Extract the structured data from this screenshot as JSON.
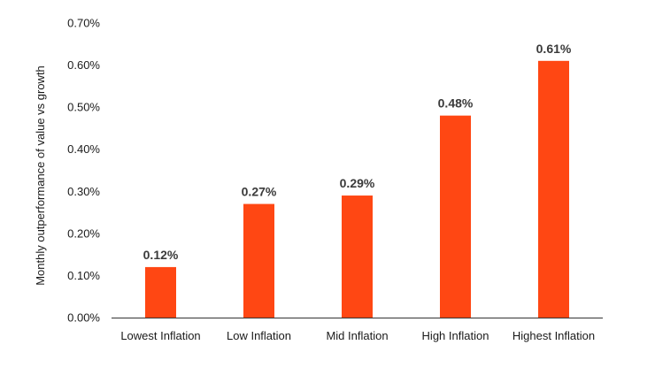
{
  "chart_data": {
    "type": "bar",
    "title": "",
    "xlabel": "",
    "ylabel": "Monthly outperformance of value vs growth",
    "categories": [
      "Lowest Inflation",
      "Low Inflation",
      "Mid Inflation",
      "High Inflation",
      "Highest Inflation"
    ],
    "values": [
      0.12,
      0.27,
      0.29,
      0.48,
      0.61
    ],
    "value_labels": [
      "0.12%",
      "0.27%",
      "0.29%",
      "0.48%",
      "0.61%"
    ],
    "ylim": [
      0,
      0.7
    ],
    "yticks": [
      0,
      0.1,
      0.2,
      0.3,
      0.4,
      0.5,
      0.6,
      0.7
    ],
    "ytick_labels": [
      "0.00%",
      "0.10%",
      "0.20%",
      "0.30%",
      "0.40%",
      "0.50%",
      "0.60%",
      "0.70%"
    ],
    "grid": false,
    "legend": "none",
    "bar_color": "#ff4713",
    "axis_color": "#333333"
  }
}
